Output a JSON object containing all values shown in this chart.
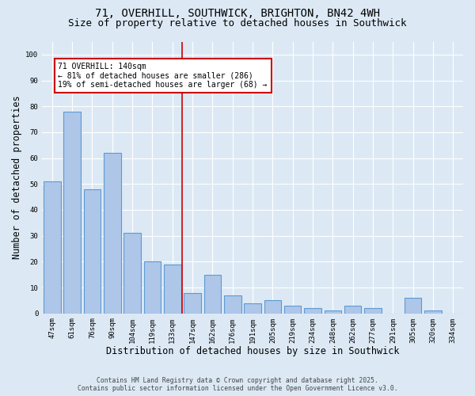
{
  "title": "71, OVERHILL, SOUTHWICK, BRIGHTON, BN42 4WH",
  "subtitle": "Size of property relative to detached houses in Southwick",
  "xlabel": "Distribution of detached houses by size in Southwick",
  "ylabel": "Number of detached properties",
  "categories": [
    "47sqm",
    "61sqm",
    "76sqm",
    "90sqm",
    "104sqm",
    "119sqm",
    "133sqm",
    "147sqm",
    "162sqm",
    "176sqm",
    "191sqm",
    "205sqm",
    "219sqm",
    "234sqm",
    "248sqm",
    "262sqm",
    "277sqm",
    "291sqm",
    "305sqm",
    "320sqm",
    "334sqm"
  ],
  "values": [
    51,
    78,
    48,
    62,
    31,
    20,
    19,
    8,
    15,
    7,
    4,
    5,
    3,
    2,
    1,
    3,
    2,
    0,
    6,
    1,
    0
  ],
  "bar_color": "#aec6e8",
  "bar_edge_color": "#5b9bd5",
  "annotation_text": "71 OVERHILL: 140sqm\n← 81% of detached houses are smaller (286)\n19% of semi-detached houses are larger (68) →",
  "annotation_box_color": "#ffffff",
  "annotation_box_edge_color": "#cc0000",
  "bg_color": "#dce9f5",
  "plot_bg_color": "#dce9f5",
  "grid_color": "#ffffff",
  "footer_line1": "Contains HM Land Registry data © Crown copyright and database right 2025.",
  "footer_line2": "Contains public sector information licensed under the Open Government Licence v3.0.",
  "ylim": [
    0,
    105
  ],
  "yticks": [
    0,
    10,
    20,
    30,
    40,
    50,
    60,
    70,
    80,
    90,
    100
  ],
  "red_line_index": 6.5,
  "title_fontsize": 10,
  "subtitle_fontsize": 9,
  "tick_fontsize": 6.5,
  "label_fontsize": 8.5,
  "annot_fontsize": 7,
  "footer_fontsize": 5.8
}
